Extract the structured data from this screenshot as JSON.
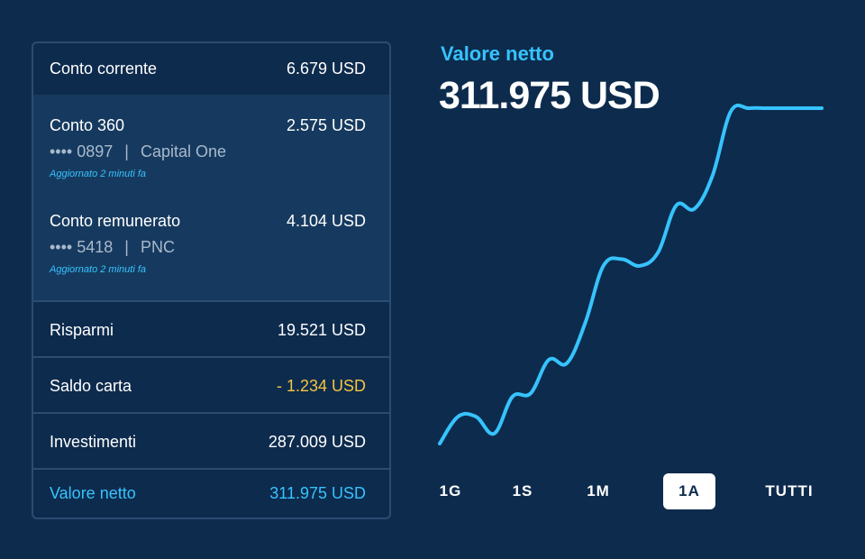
{
  "accounts": {
    "checking": {
      "label": "Conto corrente",
      "amount": "6.679 USD"
    },
    "conto360": {
      "label": "Conto 360",
      "amount": "2.575 USD",
      "masked": "•••• 0897",
      "separator": "|",
      "bank": "Capital One",
      "updated": "Aggiornato 2 minuti fa"
    },
    "remunerated": {
      "label": "Conto remunerato",
      "amount": "4.104 USD",
      "masked": "•••• 5418",
      "separator": "|",
      "bank": "PNC",
      "updated": "Aggiornato 2 minuti fa"
    },
    "savings": {
      "label": "Risparmi",
      "amount": "19.521 USD"
    },
    "card": {
      "label": "Saldo carta",
      "amount": "- 1.234 USD"
    },
    "investments": {
      "label": "Investimenti",
      "amount": "287.009 USD"
    },
    "net": {
      "label": "Valore netto",
      "amount": "311.975 USD"
    }
  },
  "summary": {
    "title": "Valore netto",
    "value": "311.975 USD"
  },
  "ranges": [
    {
      "label": "1G",
      "active": false
    },
    {
      "label": "1S",
      "active": false
    },
    {
      "label": "1M",
      "active": false
    },
    {
      "label": "1A",
      "active": true
    },
    {
      "label": "TUTTI",
      "active": false
    }
  ],
  "colors": {
    "background": "#0d2b4d",
    "accent": "#36c3ff",
    "negative": "#f5c542",
    "panel_border": "#2c4c70"
  },
  "chart_data": {
    "type": "line",
    "x": [
      0,
      1,
      2,
      3,
      4,
      5,
      6,
      7,
      8,
      9,
      10,
      11,
      12,
      13,
      14,
      15,
      16,
      17,
      18,
      19,
      20,
      21
    ],
    "series": [
      {
        "values": [
          0.0,
          0.08,
          0.08,
          0.03,
          0.14,
          0.15,
          0.25,
          0.24,
          0.36,
          0.53,
          0.55,
          0.53,
          0.57,
          0.71,
          0.7,
          0.8,
          0.99,
          1.0,
          1.0,
          1.0,
          1.0,
          1.0
        ]
      }
    ],
    "ylim": [
      0,
      1
    ],
    "grid": false
  }
}
